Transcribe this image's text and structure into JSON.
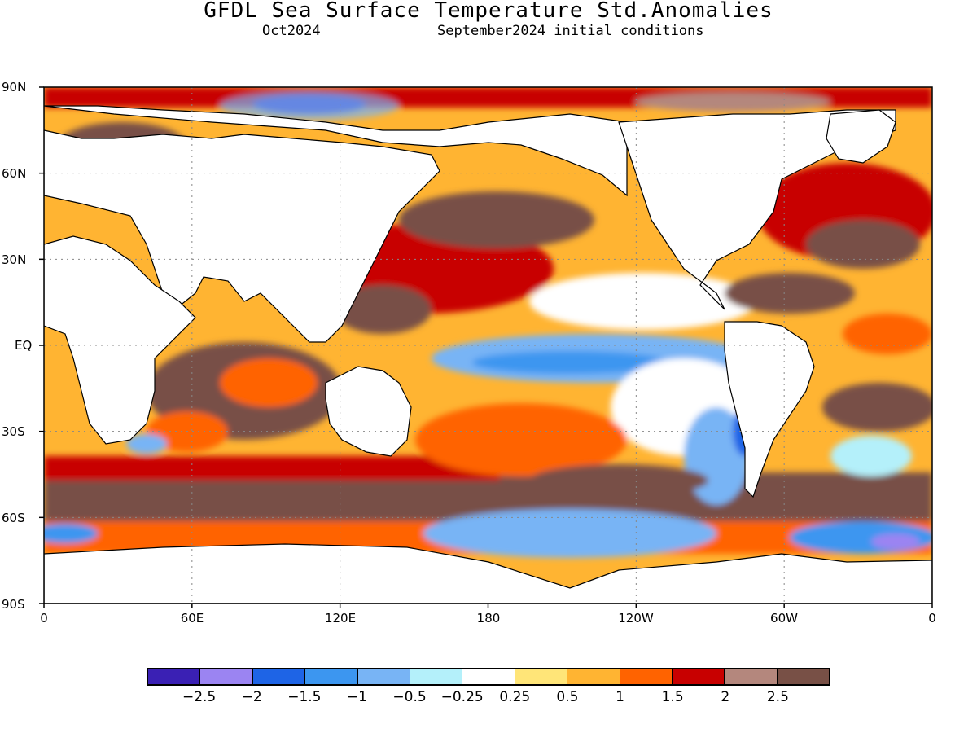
{
  "header": {
    "title": "GFDL Sea Surface Temperature Std.Anomalies",
    "valid_month": "Oct2024",
    "init": "September2024 initial conditions"
  },
  "axes": {
    "lat_labels": [
      "90N",
      "60N",
      "30N",
      "EQ",
      "30S",
      "60S",
      "90S"
    ],
    "lon_labels": [
      "0",
      "60E",
      "120E",
      "180",
      "120W",
      "60W",
      "0"
    ]
  },
  "colorbar": {
    "colors": [
      "#3a20b4",
      "#9b84f2",
      "#1e64e6",
      "#3c96f0",
      "#78b4f5",
      "#b4f0fa",
      "#ffffff",
      "#ffe578",
      "#ffb432",
      "#ff6300",
      "#c80000",
      "#b4877d",
      "#785046"
    ],
    "labels": [
      "−2.5",
      "−2",
      "−1.5",
      "−1",
      "−0.5",
      "−0.25",
      "0.25",
      "0.5",
      "1",
      "1.5",
      "2",
      "2.5"
    ]
  }
}
